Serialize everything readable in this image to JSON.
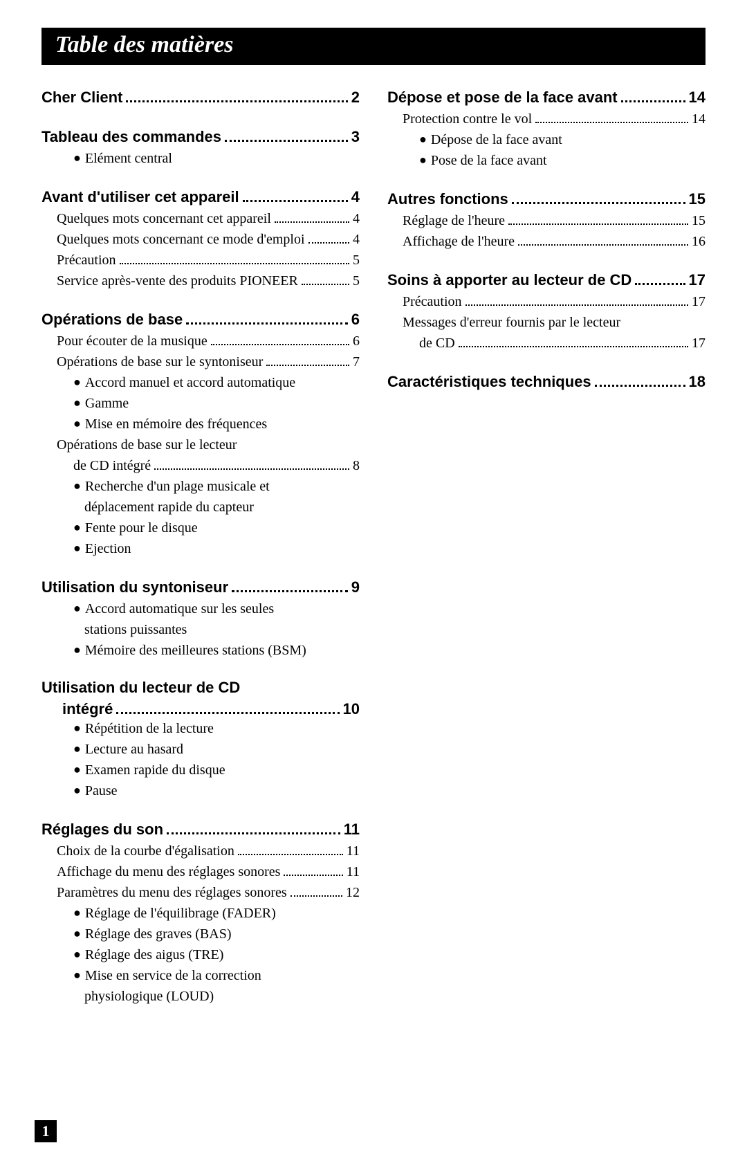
{
  "title": "Table des matières",
  "page_number": "1",
  "left": [
    {
      "type": "section",
      "items": [
        {
          "type": "heading",
          "label": "Cher Client",
          "page": "2"
        }
      ]
    },
    {
      "type": "section",
      "items": [
        {
          "type": "heading",
          "label": "Tableau des commandes",
          "page": "3"
        },
        {
          "type": "bullet",
          "label": "Elément central"
        }
      ]
    },
    {
      "type": "section",
      "items": [
        {
          "type": "heading",
          "label": "Avant d'utiliser cet appareil",
          "page": "4"
        },
        {
          "type": "sub",
          "label": "Quelques mots concernant cet appareil",
          "page": "4"
        },
        {
          "type": "sub",
          "label": "Quelques mots concernant ce mode d'emploi",
          "page": "4"
        },
        {
          "type": "sub",
          "label": "Précaution",
          "page": "5"
        },
        {
          "type": "sub",
          "label": "Service après-vente des produits PIONEER",
          "page": "5"
        }
      ]
    },
    {
      "type": "section",
      "items": [
        {
          "type": "heading",
          "label": "Opérations de base",
          "page": "6"
        },
        {
          "type": "sub",
          "label": "Pour écouter de la musique",
          "page": "6"
        },
        {
          "type": "sub",
          "label": "Opérations de base sur le syntoniseur",
          "page": "7"
        },
        {
          "type": "bullet",
          "label": "Accord manuel et accord automatique"
        },
        {
          "type": "bullet",
          "label": "Gamme"
        },
        {
          "type": "bullet",
          "label": "Mise en mémoire des fréquences"
        },
        {
          "type": "sub-nopage",
          "label": "Opérations de base sur le lecteur"
        },
        {
          "type": "sub-cont",
          "label": "de CD intégré",
          "page": "8"
        },
        {
          "type": "bullet-multi",
          "lines": [
            "Recherche d'un plage musicale et",
            "déplacement rapide du capteur"
          ]
        },
        {
          "type": "bullet",
          "label": "Fente pour le disque"
        },
        {
          "type": "bullet",
          "label": "Ejection"
        }
      ]
    },
    {
      "type": "section",
      "items": [
        {
          "type": "heading",
          "label": "Utilisation du syntoniseur",
          "page": "9"
        },
        {
          "type": "bullet-multi",
          "lines": [
            "Accord automatique sur les seules",
            "stations puissantes"
          ]
        },
        {
          "type": "bullet",
          "label": "Mémoire des meilleures stations (BSM)"
        }
      ]
    },
    {
      "type": "section",
      "items": [
        {
          "type": "heading-wrap",
          "line1": "Utilisation du lecteur de CD",
          "line2": "intégré",
          "page": "10"
        },
        {
          "type": "bullet",
          "label": "Répétition de la lecture"
        },
        {
          "type": "bullet",
          "label": "Lecture au hasard"
        },
        {
          "type": "bullet",
          "label": "Examen rapide du disque"
        },
        {
          "type": "bullet",
          "label": "Pause"
        }
      ]
    },
    {
      "type": "section",
      "items": [
        {
          "type": "heading",
          "label": "Réglages du son",
          "page": "11"
        },
        {
          "type": "sub",
          "label": "Choix de la courbe d'égalisation",
          "page": "11"
        },
        {
          "type": "sub",
          "label": "Affichage du menu des réglages sonores",
          "page": "11"
        },
        {
          "type": "sub",
          "label": "Paramètres du menu des réglages sonores",
          "page": "12"
        },
        {
          "type": "bullet",
          "label": "Réglage de l'équilibrage (FADER)"
        },
        {
          "type": "bullet",
          "label": "Réglage des graves (BAS)"
        },
        {
          "type": "bullet",
          "label": "Réglage des aigus (TRE)"
        },
        {
          "type": "bullet-multi",
          "lines": [
            "Mise en service de la correction",
            "physiologique (LOUD)"
          ]
        }
      ]
    }
  ],
  "right": [
    {
      "type": "section",
      "items": [
        {
          "type": "heading",
          "label": "Dépose et pose de la face avant",
          "page": "14"
        },
        {
          "type": "sub",
          "label": "Protection contre le vol",
          "page": "14"
        },
        {
          "type": "bullet",
          "label": "Dépose de la face avant"
        },
        {
          "type": "bullet",
          "label": "Pose de la face avant"
        }
      ]
    },
    {
      "type": "section",
      "items": [
        {
          "type": "heading",
          "label": "Autres fonctions",
          "page": "15"
        },
        {
          "type": "sub",
          "label": "Réglage de l'heure",
          "page": "15"
        },
        {
          "type": "sub",
          "label": "Affichage de l'heure",
          "page": "16"
        }
      ]
    },
    {
      "type": "section",
      "items": [
        {
          "type": "heading",
          "label": "Soins à apporter au lecteur de CD",
          "page": "17"
        },
        {
          "type": "sub",
          "label": "Précaution",
          "page": "17"
        },
        {
          "type": "sub-nopage",
          "label": "Messages d'erreur fournis par le lecteur"
        },
        {
          "type": "sub-cont",
          "label": "de CD",
          "page": "17"
        }
      ]
    },
    {
      "type": "section",
      "items": [
        {
          "type": "heading",
          "label": "Caractéristiques techniques",
          "page": "18"
        }
      ]
    }
  ]
}
